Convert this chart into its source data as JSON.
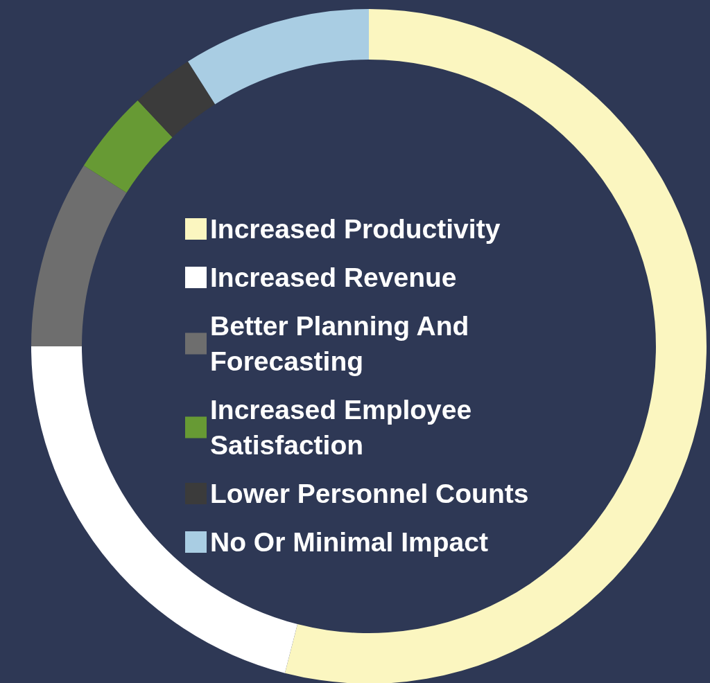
{
  "chart_data": {
    "type": "donut",
    "categories": [
      "Increased Productivity",
      "Increased Revenue",
      "Better Planning And Forecasting",
      "Increased Employee Satisfaction",
      "Lower Personnel Counts",
      "No Or Minimal Impact"
    ],
    "values": [
      54,
      21,
      9,
      4,
      3,
      9
    ],
    "colors": [
      "#fbf6c0",
      "#ffffff",
      "#6e6e6e",
      "#679a34",
      "#3b3b3b",
      "#a9cde3"
    ],
    "legend": "center"
  }
}
